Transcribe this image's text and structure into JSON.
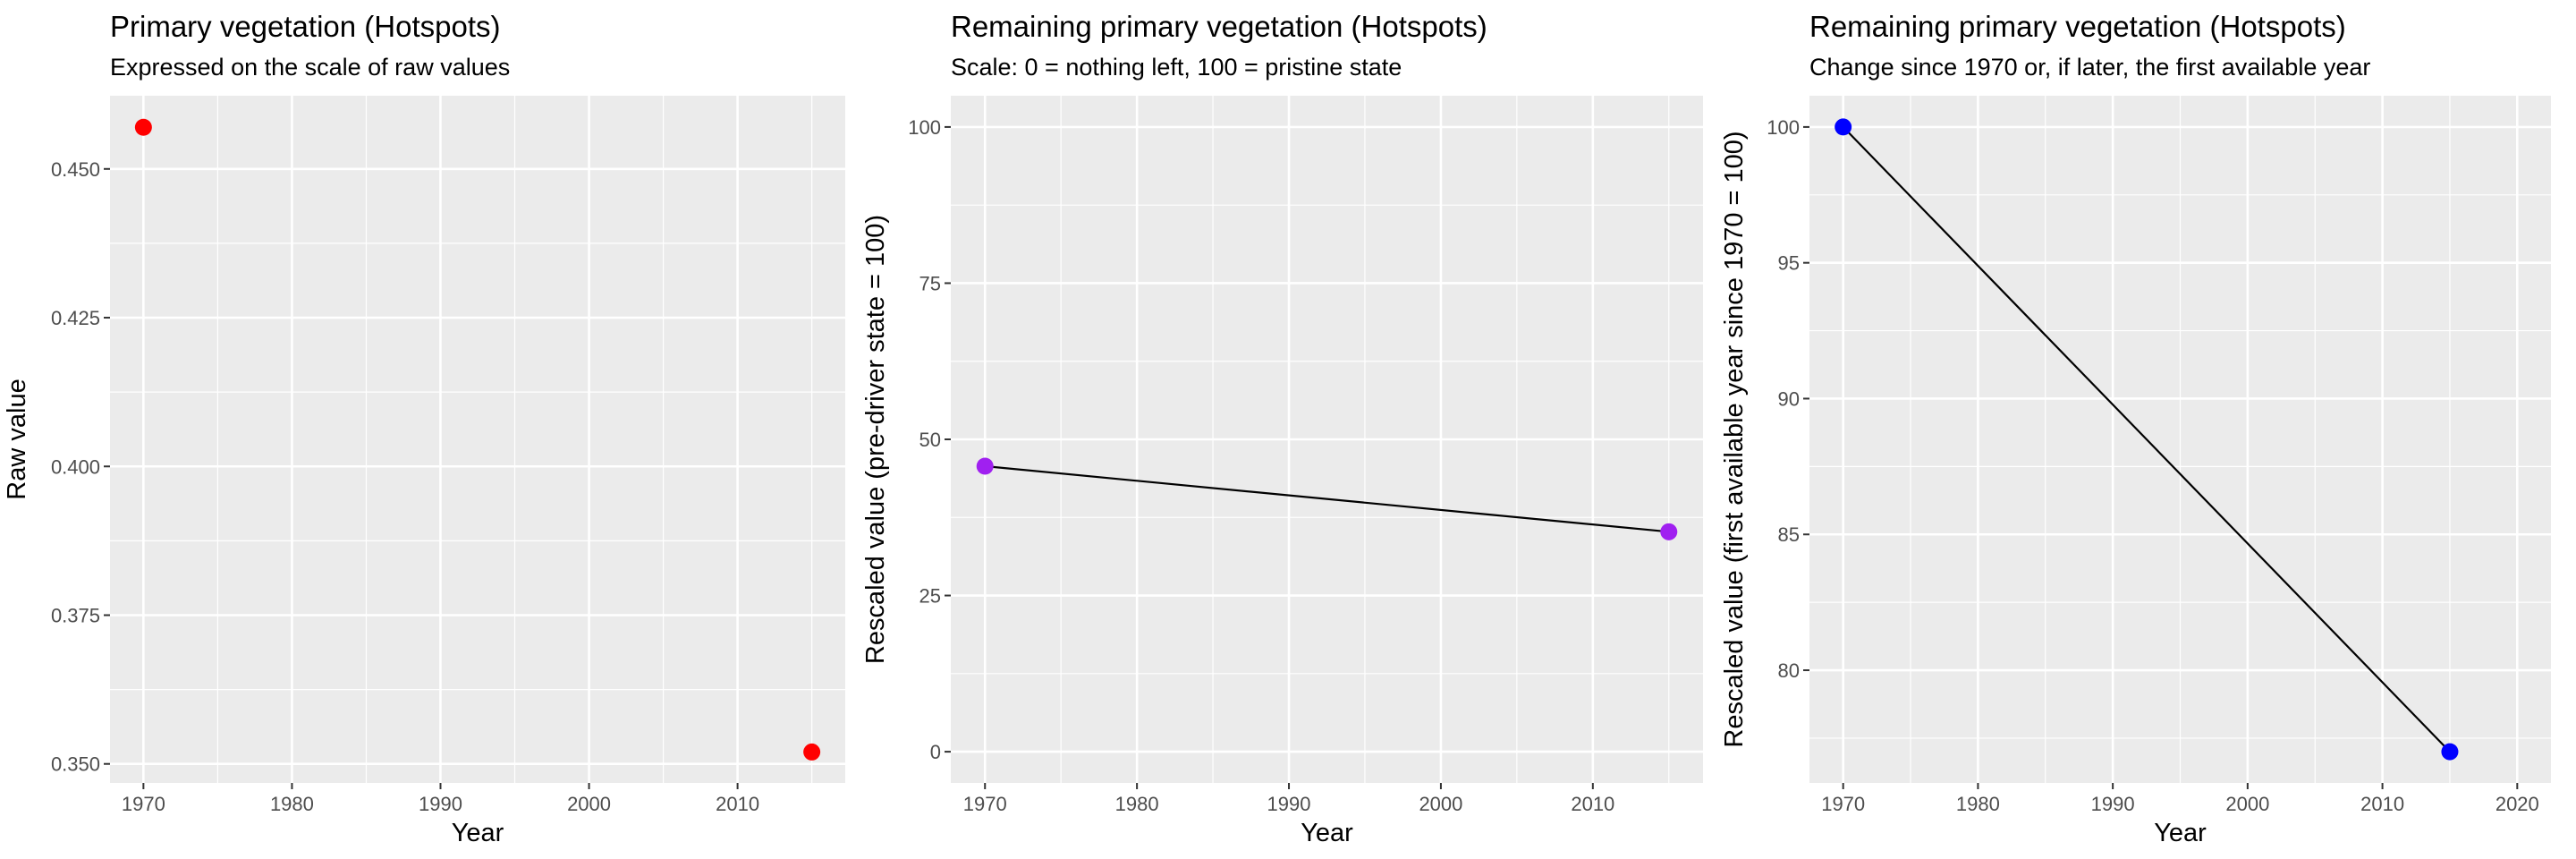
{
  "chart_data": [
    {
      "type": "scatter",
      "title": "Primary vegetation (Hotspots)",
      "subtitle": "Expressed on the scale of raw values",
      "xlabel": "Year",
      "ylabel": "Raw value",
      "xlim": [
        1967.75,
        2017.25
      ],
      "ylim": [
        0.3468,
        0.4623
      ],
      "xticks": [
        "1970",
        "1980",
        "1990",
        "2000",
        "2010"
      ],
      "xtick_values": [
        1970,
        1980,
        1990,
        2000,
        2010
      ],
      "yticks": [
        "0.350",
        "0.375",
        "0.400",
        "0.425",
        "0.450"
      ],
      "ytick_values": [
        0.35,
        0.375,
        0.4,
        0.425,
        0.45
      ],
      "x": [
        1970,
        2015
      ],
      "y": [
        0.457,
        0.352
      ],
      "point_color": "#ff0000",
      "connect_line": false,
      "grid": true,
      "panel_background": "#ebebeb"
    },
    {
      "type": "line",
      "title": "Remaining primary vegetation (Hotspots)",
      "subtitle": "Scale: 0 = nothing left, 100 = pristine state",
      "xlabel": "Year",
      "ylabel": "Rescaled value (pre-driver state = 100)",
      "xlim": [
        1967.75,
        2017.25
      ],
      "ylim": [
        -5,
        105
      ],
      "xticks": [
        "1970",
        "1980",
        "1990",
        "2000",
        "2010"
      ],
      "xtick_values": [
        1970,
        1980,
        1990,
        2000,
        2010
      ],
      "yticks": [
        "0",
        "25",
        "50",
        "75",
        "100"
      ],
      "ytick_values": [
        0,
        25,
        50,
        75,
        100
      ],
      "x": [
        1970,
        2015
      ],
      "y": [
        45.7,
        35.2
      ],
      "point_color": "#a020f0",
      "connect_line": true,
      "grid": true,
      "panel_background": "#ebebeb"
    },
    {
      "type": "line",
      "title": "Remaining primary vegetation (Hotspots)",
      "subtitle": "Change since 1970 or, if later, the first available year",
      "xlabel": "Year",
      "ylabel": "Rescaled value (first available year since 1970 = 100)",
      "xlim": [
        1967.5,
        2022.5
      ],
      "ylim": [
        75.85,
        101.15
      ],
      "xticks": [
        "1970",
        "1980",
        "1990",
        "2000",
        "2010",
        "2020"
      ],
      "xtick_values": [
        1970,
        1980,
        1990,
        2000,
        2010,
        2020
      ],
      "yticks": [
        "80",
        "85",
        "90",
        "95",
        "100"
      ],
      "ytick_values": [
        80,
        85,
        90,
        95,
        100
      ],
      "x": [
        1970,
        2015
      ],
      "y": [
        100,
        77
      ],
      "point_color": "#0000ff",
      "connect_line": true,
      "grid": true,
      "panel_background": "#ebebeb"
    }
  ]
}
